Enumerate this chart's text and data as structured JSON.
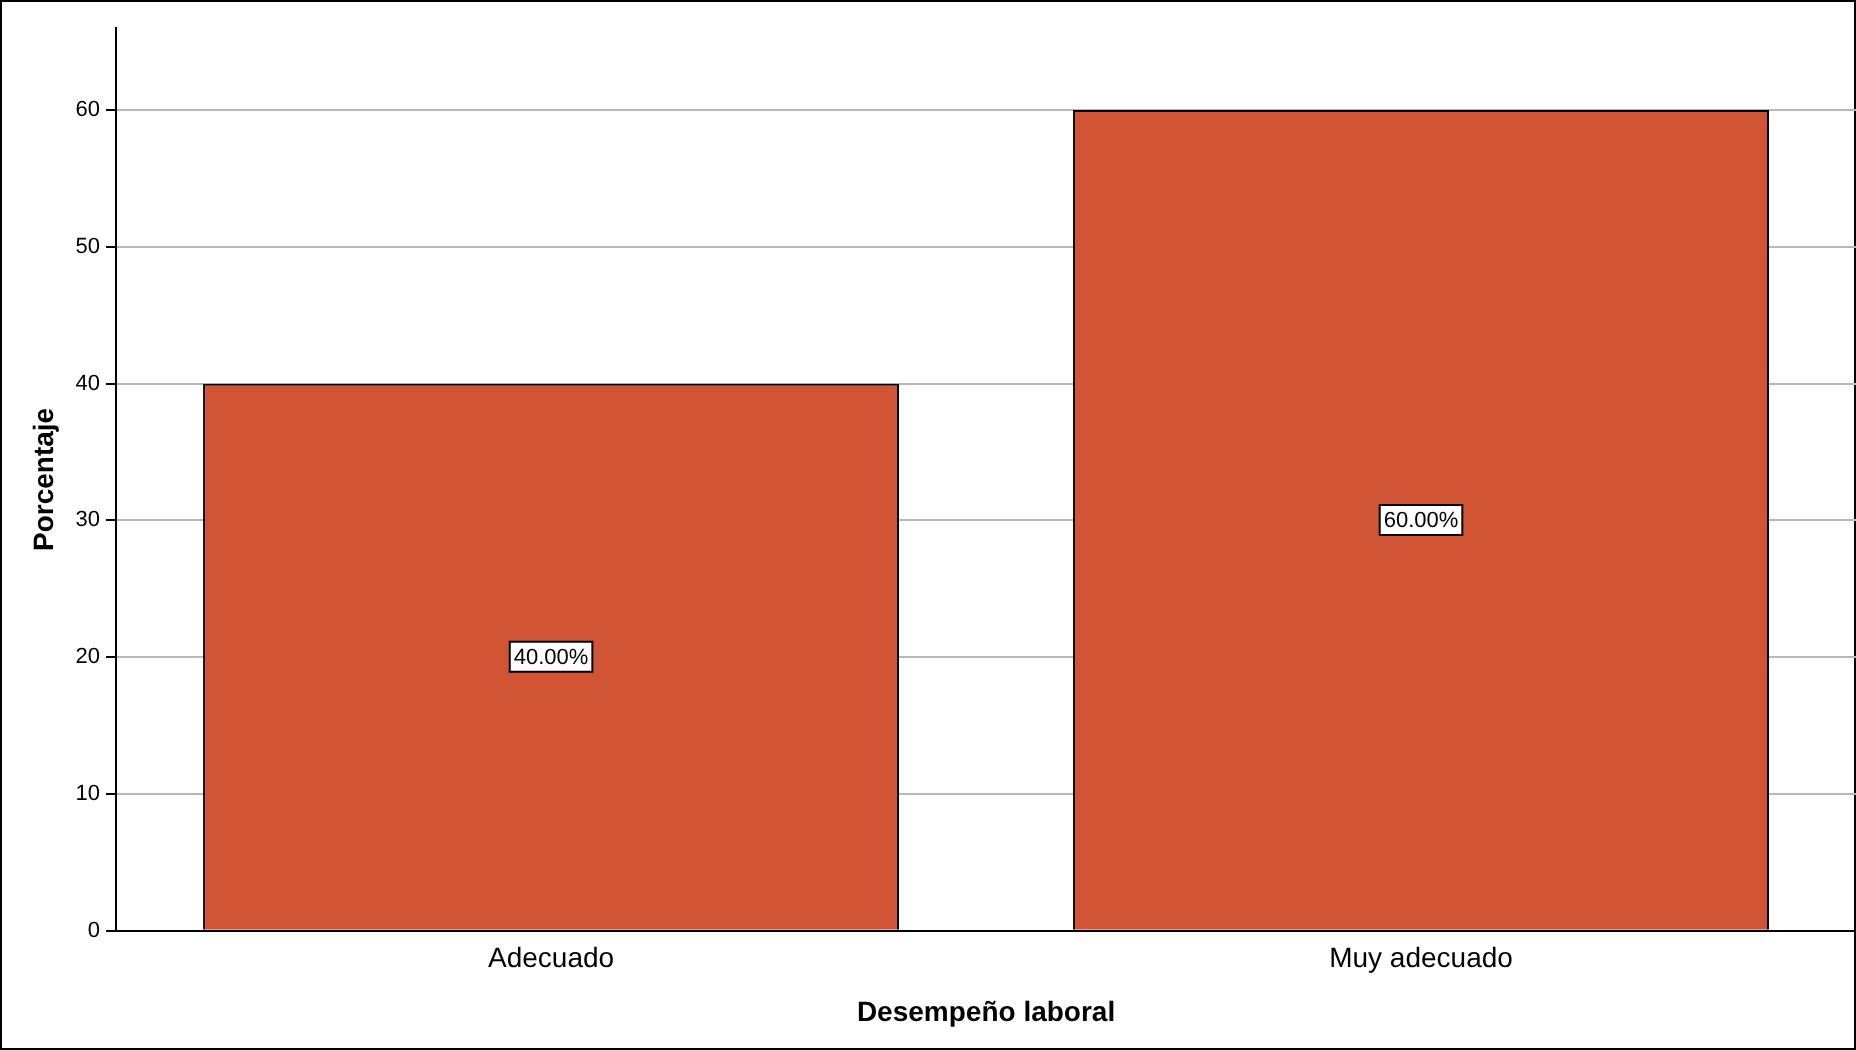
{
  "chart_data": {
    "type": "bar",
    "xlabel": "Desempeño laboral",
    "ylabel": "Porcentaje",
    "categories": [
      "Adecuado",
      "Muy adecuado"
    ],
    "values": [
      40,
      60
    ],
    "value_labels": [
      "40.00%",
      "60.00%"
    ],
    "color": "#d15535",
    "ylim": [
      0,
      66
    ],
    "yticks": [
      0,
      10,
      20,
      30,
      40,
      50,
      60
    ],
    "grid": "y",
    "legend": false
  }
}
